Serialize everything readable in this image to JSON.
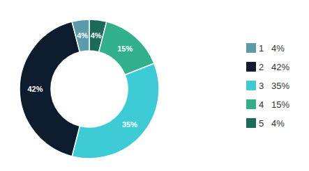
{
  "chart_data": {
    "type": "donut",
    "categories": [
      "5   4%",
      "4   15%",
      "3   35%",
      "2   42%",
      "1   4%"
    ],
    "values": [
      4,
      15,
      35,
      42,
      4
    ],
    "value_labels": [
      "4%",
      "15%",
      "35%",
      "42%",
      "4%"
    ],
    "colors": [
      "#1a6b5a",
      "#32b08c",
      "#3dcbd5",
      "#0d1b2e",
      "#5b9baa"
    ],
    "legend": "right"
  }
}
